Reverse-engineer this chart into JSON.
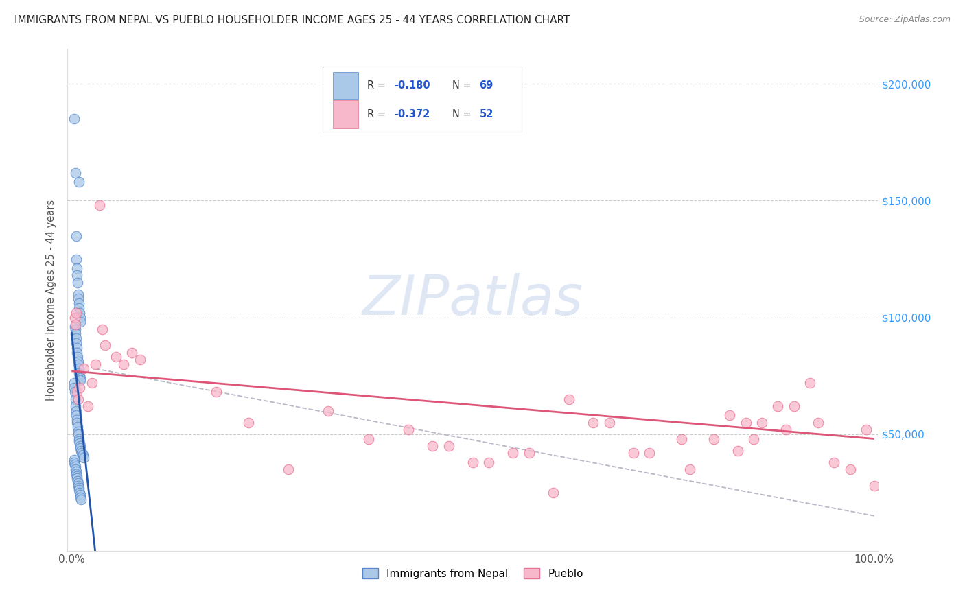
{
  "title": "IMMIGRANTS FROM NEPAL VS PUEBLO HOUSEHOLDER INCOME AGES 25 - 44 YEARS CORRELATION CHART",
  "source": "Source: ZipAtlas.com",
  "ylabel": "Householder Income Ages 25 - 44 years",
  "ytick_values": [
    0,
    50000,
    100000,
    150000,
    200000
  ],
  "ytick_right_labels": [
    "",
    "$50,000",
    "$100,000",
    "$150,000",
    "$200,000"
  ],
  "xmin": 0.0,
  "xmax": 100.0,
  "ymin": 0,
  "ymax": 215000,
  "legend_label1": "Immigrants from Nepal",
  "legend_label2": "Pueblo",
  "blue_fill": "#aac8e8",
  "blue_edge": "#5588cc",
  "pink_fill": "#f8b8cc",
  "pink_edge": "#e87090",
  "blue_line": "#2255aa",
  "pink_line": "#dd5577",
  "gray_dash": "#b8b8c8",
  "watermark_color": "#ccd8ee",
  "nepal_x": [
    0.35,
    0.5,
    0.9,
    0.55,
    0.6,
    0.65,
    0.7,
    0.75,
    0.8,
    0.85,
    0.9,
    0.95,
    1.0,
    1.05,
    1.1,
    0.4,
    0.45,
    0.5,
    0.55,
    0.6,
    0.65,
    0.7,
    0.75,
    0.8,
    0.85,
    0.9,
    0.95,
    1.0,
    1.05,
    1.1,
    0.3,
    0.35,
    0.4,
    0.45,
    0.5,
    0.55,
    0.6,
    0.65,
    0.7,
    0.75,
    0.8,
    0.85,
    0.9,
    0.95,
    1.0,
    1.05,
    1.1,
    1.2,
    1.3,
    1.4,
    1.5,
    0.3,
    0.35,
    0.4,
    0.45,
    0.5,
    0.55,
    0.6,
    0.65,
    0.7,
    0.75,
    0.8,
    0.85,
    0.9,
    0.95,
    1.0,
    1.05,
    1.1,
    1.2
  ],
  "nepal_y": [
    185000,
    162000,
    158000,
    135000,
    125000,
    121000,
    118000,
    115000,
    110000,
    108000,
    106000,
    104000,
    102000,
    100000,
    98000,
    96000,
    95000,
    93000,
    91000,
    89000,
    87000,
    85000,
    83000,
    81000,
    80000,
    78000,
    76000,
    75000,
    74000,
    73000,
    72000,
    70000,
    68000,
    65000,
    62000,
    60000,
    58000,
    56000,
    55000,
    53000,
    51000,
    50000,
    48000,
    47000,
    46000,
    45000,
    44000,
    43000,
    42000,
    41000,
    40000,
    39000,
    38000,
    37000,
    36000,
    35000,
    34000,
    33000,
    32000,
    31000,
    30000,
    29000,
    28000,
    27000,
    26000,
    25000,
    24000,
    23000,
    22000
  ],
  "pueblo_x": [
    0.4,
    0.5,
    3.5,
    0.6,
    3.8,
    4.2,
    5.5,
    6.5,
    7.5,
    8.5,
    0.7,
    0.8,
    1.0,
    1.5,
    2.0,
    2.5,
    3.0,
    18.0,
    22.0,
    27.0,
    32.0,
    37.0,
    42.0,
    47.0,
    52.0,
    57.0,
    62.0,
    67.0,
    72.0,
    77.0,
    80.0,
    84.0,
    88.0,
    92.0,
    95.0,
    97.0,
    99.0,
    100.0,
    86.0,
    90.0,
    85.0,
    93.0,
    83.0,
    89.0,
    82.0,
    76.0,
    70.0,
    65.0,
    60.0,
    55.0,
    50.0,
    45.0
  ],
  "pueblo_y": [
    100000,
    97000,
    148000,
    102000,
    95000,
    88000,
    83000,
    80000,
    85000,
    82000,
    68000,
    65000,
    70000,
    78000,
    62000,
    72000,
    80000,
    68000,
    55000,
    35000,
    60000,
    48000,
    52000,
    45000,
    38000,
    42000,
    65000,
    55000,
    42000,
    35000,
    48000,
    55000,
    62000,
    72000,
    38000,
    35000,
    52000,
    28000,
    55000,
    62000,
    48000,
    55000,
    43000,
    52000,
    58000,
    48000,
    42000,
    55000,
    25000,
    42000,
    38000,
    45000
  ]
}
